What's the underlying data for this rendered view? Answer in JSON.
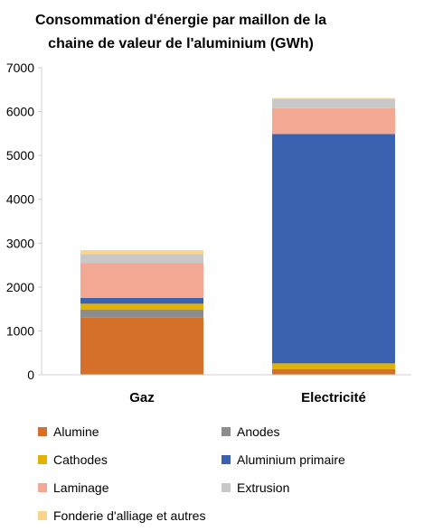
{
  "chart_data": {
    "type": "bar",
    "stacked": true,
    "title_lines": [
      "Consommation d'énergie par maillon de la",
      "chaine de valeur de l'aluminium (GWh)"
    ],
    "categories": [
      "Gaz",
      "Electricité"
    ],
    "ylim": [
      0,
      7000
    ],
    "yticks": [
      "0",
      "1000",
      "2000",
      "3000",
      "4000",
      "5000",
      "6000",
      "7000"
    ],
    "ytick_values": [
      0,
      1000,
      2000,
      3000,
      4000,
      5000,
      6000,
      7000
    ],
    "grid": false,
    "legend_position": "bottom",
    "series": [
      {
        "name": "Alumine",
        "color": "#D4702A",
        "values": [
          1300,
          130
        ]
      },
      {
        "name": "Anodes",
        "color": "#8C8C8C",
        "values": [
          190,
          0
        ]
      },
      {
        "name": "Cathodes",
        "color": "#E3B100",
        "values": [
          130,
          130
        ]
      },
      {
        "name": "Aluminium primaire",
        "color": "#3A62B0",
        "values": [
          130,
          5230
        ]
      },
      {
        "name": "Laminage",
        "color": "#F2A893",
        "values": [
          800,
          590
        ]
      },
      {
        "name": "Extrusion",
        "color": "#C8C8C8",
        "values": [
          200,
          200
        ]
      },
      {
        "name": "Fonderie d'alliage et autres",
        "color": "#FAD38C",
        "values": [
          90,
          30
        ]
      }
    ]
  }
}
